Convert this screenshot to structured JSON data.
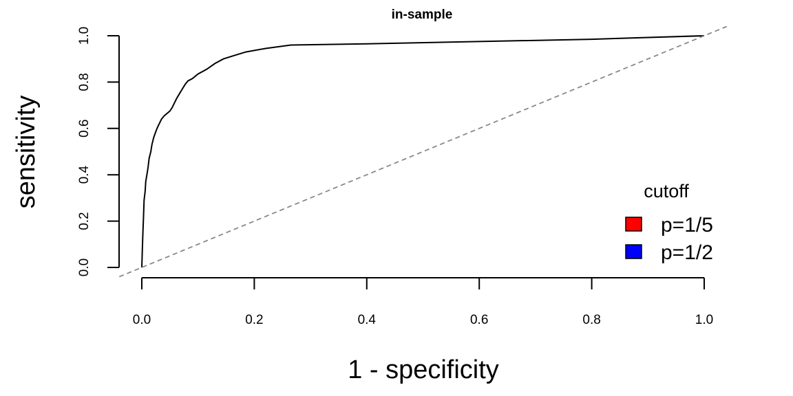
{
  "chart_data": {
    "type": "line",
    "title": "in-sample",
    "xlabel": "1 - specificity",
    "ylabel": "sensitivity",
    "xlim": [
      0.0,
      1.0
    ],
    "ylim": [
      0.0,
      1.0
    ],
    "x_ticks": [
      "0.0",
      "0.2",
      "0.4",
      "0.6",
      "0.8",
      "1.0"
    ],
    "y_ticks": [
      "0.0",
      "0.2",
      "0.4",
      "0.6",
      "0.8",
      "1.0"
    ],
    "grid": false,
    "series": [
      {
        "style": "solid",
        "color": "#000000",
        "points": [
          [
            0.0,
            0.0
          ],
          [
            0.001,
            0.08
          ],
          [
            0.002,
            0.15
          ],
          [
            0.003,
            0.22
          ],
          [
            0.004,
            0.29
          ],
          [
            0.006,
            0.33
          ],
          [
            0.007,
            0.37
          ],
          [
            0.009,
            0.4
          ],
          [
            0.011,
            0.43
          ],
          [
            0.013,
            0.47
          ],
          [
            0.016,
            0.5
          ],
          [
            0.018,
            0.53
          ],
          [
            0.021,
            0.56
          ],
          [
            0.024,
            0.58
          ],
          [
            0.027,
            0.6
          ],
          [
            0.031,
            0.62
          ],
          [
            0.035,
            0.64
          ],
          [
            0.04,
            0.655
          ],
          [
            0.045,
            0.665
          ],
          [
            0.05,
            0.675
          ],
          [
            0.054,
            0.69
          ],
          [
            0.058,
            0.71
          ],
          [
            0.062,
            0.73
          ],
          [
            0.067,
            0.75
          ],
          [
            0.072,
            0.77
          ],
          [
            0.077,
            0.79
          ],
          [
            0.082,
            0.805
          ],
          [
            0.09,
            0.815
          ],
          [
            0.1,
            0.835
          ],
          [
            0.115,
            0.855
          ],
          [
            0.13,
            0.88
          ],
          [
            0.145,
            0.9
          ],
          [
            0.165,
            0.915
          ],
          [
            0.185,
            0.93
          ],
          [
            0.22,
            0.945
          ],
          [
            0.265,
            0.96
          ],
          [
            0.4,
            0.965
          ],
          [
            0.6,
            0.975
          ],
          [
            0.8,
            0.985
          ],
          [
            1.0,
            1.0
          ]
        ]
      },
      {
        "style": "dashed",
        "color": "#888888",
        "points": [
          [
            -0.04,
            -0.04
          ],
          [
            1.04,
            1.04
          ]
        ]
      }
    ],
    "legend": {
      "title": "cutoff",
      "placement": "bottom-right",
      "entries": [
        {
          "label": "p=1/5",
          "color": "#ff0000"
        },
        {
          "label": "p=1/2",
          "color": "#0000ff"
        }
      ]
    }
  }
}
